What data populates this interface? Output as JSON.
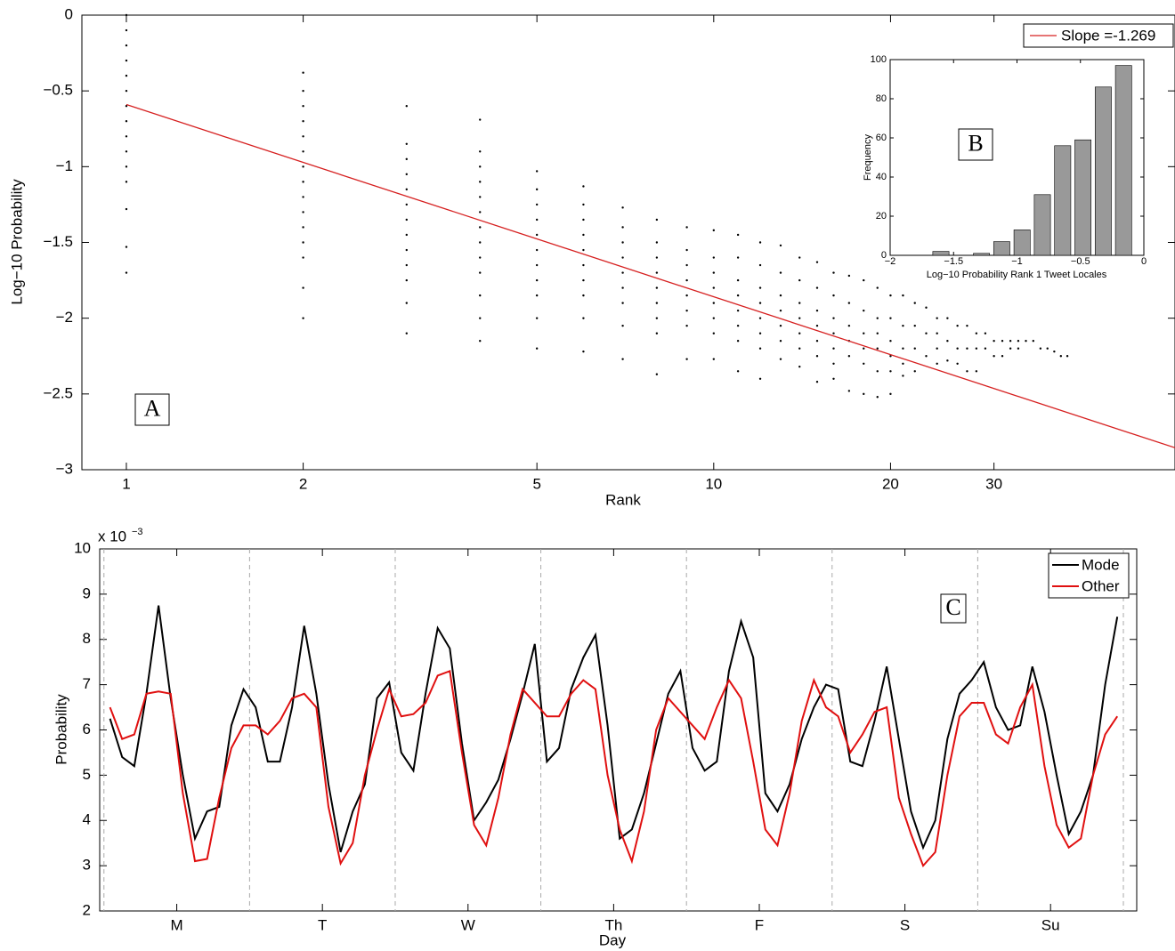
{
  "chart_data": [
    {
      "type": "scatter",
      "xlabel": "Rank",
      "ylabel": "Log−10 Probability",
      "annotation": "A",
      "xscale": "log",
      "color": "#000000",
      "xlim": [
        0.84,
        61
      ],
      "xticks": [
        1,
        2,
        5,
        10,
        20,
        30
      ],
      "ylim": [
        -3,
        0
      ],
      "yticks": [
        {
          "value": -3,
          "label": "−3"
        },
        {
          "value": -2.5,
          "label": "−2.5"
        },
        {
          "value": -2,
          "label": "−2"
        },
        {
          "value": -1.5,
          "label": "−1.5"
        },
        {
          "value": -1,
          "label": "−1"
        },
        {
          "value": -0.5,
          "label": "−0.5"
        },
        0
      ],
      "x": [
        1,
        2,
        3,
        4,
        5,
        6,
        7,
        8,
        9,
        10,
        11,
        12,
        13,
        14,
        15,
        16,
        17,
        18,
        19,
        20,
        21,
        22,
        23,
        24,
        25,
        26,
        27,
        28,
        29,
        30,
        31,
        32,
        33,
        34,
        35,
        36,
        37,
        38,
        39,
        40
      ],
      "values": [
        [
          0,
          -0.1,
          -0.2,
          -0.3,
          -0.4,
          -0.5,
          -0.6,
          -0.7,
          -0.8,
          -0.9,
          -1.0,
          -1.1,
          -1.28,
          -1.53,
          -1.7
        ],
        [
          -0.38,
          -0.5,
          -0.6,
          -0.7,
          -0.8,
          -0.9,
          -1.0,
          -1.1,
          -1.2,
          -1.3,
          -1.4,
          -1.5,
          -1.6,
          -1.8,
          -2.0
        ],
        [
          -0.6,
          -0.85,
          -0.95,
          -1.05,
          -1.15,
          -1.25,
          -1.35,
          -1.45,
          -1.55,
          -1.65,
          -1.75,
          -1.9,
          -2.1
        ],
        [
          -0.69,
          -0.9,
          -1.0,
          -1.1,
          -1.2,
          -1.3,
          -1.4,
          -1.5,
          -1.6,
          -1.7,
          -1.85,
          -2.0,
          -2.15
        ],
        [
          -1.03,
          -1.15,
          -1.25,
          -1.35,
          -1.45,
          -1.55,
          -1.65,
          -1.75,
          -1.85,
          -2.0,
          -2.2
        ],
        [
          -1.13,
          -1.25,
          -1.35,
          -1.45,
          -1.55,
          -1.65,
          -1.75,
          -1.85,
          -2.0,
          -2.22
        ],
        [
          -1.27,
          -1.4,
          -1.5,
          -1.6,
          -1.7,
          -1.8,
          -1.9,
          -2.05,
          -2.27
        ],
        [
          -1.35,
          -1.5,
          -1.6,
          -1.7,
          -1.8,
          -1.9,
          -2.0,
          -2.1,
          -2.37
        ],
        [
          -1.4,
          -1.55,
          -1.65,
          -1.75,
          -1.85,
          -1.95,
          -2.05,
          -2.27
        ],
        [
          -1.42,
          -1.6,
          -1.7,
          -1.8,
          -1.9,
          -2.0,
          -2.1,
          -2.27
        ],
        [
          -1.45,
          -1.6,
          -1.75,
          -1.85,
          -1.95,
          -2.05,
          -2.15,
          -2.35
        ],
        [
          -1.5,
          -1.65,
          -1.8,
          -1.9,
          -2.0,
          -2.1,
          -2.2,
          -2.4
        ],
        [
          -1.52,
          -1.7,
          -1.85,
          -1.95,
          -2.05,
          -2.15,
          -2.27
        ],
        [
          -1.6,
          -1.75,
          -1.9,
          -2.0,
          -2.1,
          -2.2,
          -2.32
        ],
        [
          -1.63,
          -1.8,
          -1.95,
          -2.05,
          -2.15,
          -2.25,
          -2.42
        ],
        [
          -1.7,
          -1.85,
          -2.0,
          -2.1,
          -2.2,
          -2.3,
          -2.4
        ],
        [
          -1.72,
          -1.9,
          -2.05,
          -2.15,
          -2.25,
          -2.48
        ],
        [
          -1.75,
          -1.95,
          -2.1,
          -2.2,
          -2.3,
          -2.5
        ],
        [
          -1.8,
          -2.0,
          -2.1,
          -2.2,
          -2.35,
          -2.52
        ],
        [
          -1.85,
          -2.0,
          -2.15,
          -2.25,
          -2.35,
          -2.5
        ],
        [
          -1.85,
          -2.05,
          -2.2,
          -2.3,
          -2.38
        ],
        [
          -1.9,
          -2.05,
          -2.2,
          -2.35
        ],
        [
          -1.93,
          -2.1,
          -2.25
        ],
        [
          -2.0,
          -2.1,
          -2.2,
          -2.3
        ],
        [
          -2.0,
          -2.15,
          -2.28
        ],
        [
          -2.05,
          -2.2,
          -2.3
        ],
        [
          -2.05,
          -2.2,
          -2.35
        ],
        [
          -2.1,
          -2.2,
          -2.35
        ],
        [
          -2.1,
          -2.2
        ],
        [
          -2.15,
          -2.25
        ],
        [
          -2.15,
          -2.25
        ],
        [
          -2.15,
          -2.2
        ],
        [
          -2.15,
          -2.2
        ],
        [
          -2.15
        ],
        [
          -2.15
        ],
        [
          -2.2
        ],
        [
          -2.2
        ],
        [
          -2.22
        ],
        [
          -2.25
        ],
        [
          -2.25
        ]
      ],
      "fit": {
        "name": "Slope =-1.269",
        "color": "#d62020",
        "x": [
          1,
          61
        ],
        "values": [
          -0.59,
          -2.855
        ]
      },
      "legend": "upper right"
    },
    {
      "type": "histogram",
      "xlabel": "Log−10 Probability Rank 1 Tweet Locales",
      "ylabel": "Frequency",
      "annotation": "B",
      "color": "#999999",
      "xlim": [
        -2,
        0
      ],
      "xticks": [
        {
          "value": -2,
          "label": "−2"
        },
        {
          "value": -1.5,
          "label": "−1.5"
        },
        {
          "value": -1,
          "label": "−1"
        },
        {
          "value": -0.5,
          "label": "−0.5"
        },
        0
      ],
      "ylim": [
        0,
        100
      ],
      "yticks": [
        0,
        20,
        40,
        60,
        80,
        100
      ],
      "bins": [
        -1.68,
        -1.52,
        -1.36,
        -1.2,
        -1.04,
        -0.88,
        -0.72,
        -0.56,
        -0.4,
        -0.24,
        -0.08
      ],
      "values": [
        2,
        0,
        1,
        7,
        13,
        31,
        56,
        59,
        86,
        97
      ]
    },
    {
      "type": "line",
      "xlabel": "Day",
      "ylabel": "Probability",
      "annotation": "C",
      "axis_multiplier": "x 10",
      "axis_multiplier_exponent": "−3",
      "xlim": [
        -0.7,
        170.2
      ],
      "xticks": [
        {
          "value": 12,
          "label": "M"
        },
        {
          "value": 36,
          "label": "T"
        },
        {
          "value": 60,
          "label": "W"
        },
        {
          "value": 84,
          "label": "Th"
        },
        {
          "value": 108,
          "label": "F"
        },
        {
          "value": 132,
          "label": "S"
        },
        {
          "value": 156,
          "label": "Su"
        }
      ],
      "day_boundaries": [
        0,
        24,
        48,
        72,
        96,
        120,
        144,
        168
      ],
      "ylim": [
        0.002,
        0.01
      ],
      "yticks": [
        {
          "value": 0.002,
          "label": "2"
        },
        {
          "value": 0.003,
          "label": "3"
        },
        {
          "value": 0.004,
          "label": "4"
        },
        {
          "value": 0.005,
          "label": "5"
        },
        {
          "value": 0.006,
          "label": "6"
        },
        {
          "value": 0.007,
          "label": "7"
        },
        {
          "value": 0.008,
          "label": "8"
        },
        {
          "value": 0.009,
          "label": "9"
        },
        {
          "value": 0.01,
          "label": "10"
        }
      ],
      "legend": "upper right",
      "x": [
        1,
        3,
        5,
        7,
        9,
        11,
        13,
        15,
        17,
        19,
        21,
        23,
        25,
        27,
        29,
        31,
        33,
        35,
        37,
        39,
        41,
        43,
        45,
        47,
        49,
        51,
        53,
        55,
        57,
        59,
        61,
        63,
        65,
        67,
        69,
        71,
        73,
        75,
        77,
        79,
        81,
        83,
        85,
        87,
        89,
        91,
        93,
        95,
        97,
        99,
        101,
        103,
        105,
        107,
        109,
        111,
        113,
        115,
        117,
        119,
        121,
        123,
        125,
        127,
        129,
        131,
        133,
        135,
        137,
        139,
        141,
        143,
        145,
        147,
        149,
        151,
        153,
        155,
        157,
        159,
        161,
        163,
        165,
        167
      ],
      "series": [
        {
          "name": "Mode",
          "color": "#000000",
          "values": [
            0.00625,
            0.0054,
            0.0052,
            0.0068,
            0.00875,
            0.0067,
            0.005,
            0.0036,
            0.0042,
            0.0043,
            0.0061,
            0.0069,
            0.0065,
            0.0053,
            0.0053,
            0.0065,
            0.0083,
            0.0068,
            0.0048,
            0.0033,
            0.0042,
            0.0048,
            0.0067,
            0.00705,
            0.0055,
            0.0051,
            0.0068,
            0.00825,
            0.0078,
            0.0057,
            0.004,
            0.0044,
            0.0049,
            0.0058,
            0.0068,
            0.0079,
            0.0053,
            0.0056,
            0.0069,
            0.0076,
            0.0081,
            0.0061,
            0.0036,
            0.0038,
            0.0046,
            0.0057,
            0.0068,
            0.0073,
            0.0056,
            0.0051,
            0.0053,
            0.0073,
            0.0084,
            0.0076,
            0.0046,
            0.0042,
            0.0048,
            0.0058,
            0.0065,
            0.007,
            0.0069,
            0.0053,
            0.0052,
            0.0062,
            0.0074,
            0.0058,
            0.0042,
            0.0034,
            0.004,
            0.0058,
            0.0068,
            0.0071,
            0.0075,
            0.0065,
            0.006,
            0.0061,
            0.0074,
            0.0064,
            0.005,
            0.0037,
            0.0042,
            0.005,
            0.007,
            0.0085
          ]
        },
        {
          "name": "Other",
          "color": "#e01010",
          "values": [
            0.0065,
            0.0058,
            0.0059,
            0.0068,
            0.00685,
            0.0068,
            0.0046,
            0.0031,
            0.00315,
            0.0045,
            0.0056,
            0.0061,
            0.0061,
            0.0059,
            0.0062,
            0.0067,
            0.0068,
            0.0065,
            0.0043,
            0.00305,
            0.0035,
            0.005,
            0.006,
            0.0069,
            0.0063,
            0.00635,
            0.0066,
            0.0072,
            0.0073,
            0.0055,
            0.0039,
            0.00345,
            0.0045,
            0.0059,
            0.0069,
            0.0066,
            0.0063,
            0.0063,
            0.0068,
            0.0071,
            0.0069,
            0.005,
            0.0038,
            0.0031,
            0.0042,
            0.006,
            0.0067,
            0.0064,
            0.0061,
            0.0058,
            0.0065,
            0.0071,
            0.0067,
            0.0053,
            0.0038,
            0.00345,
            0.0046,
            0.0062,
            0.0071,
            0.0065,
            0.0063,
            0.0055,
            0.0059,
            0.0064,
            0.0065,
            0.0045,
            0.0037,
            0.003,
            0.0033,
            0.005,
            0.0063,
            0.0066,
            0.0066,
            0.0059,
            0.0057,
            0.0065,
            0.007,
            0.0052,
            0.0039,
            0.0034,
            0.0036,
            0.005,
            0.0059,
            0.0063
          ]
        }
      ]
    }
  ]
}
